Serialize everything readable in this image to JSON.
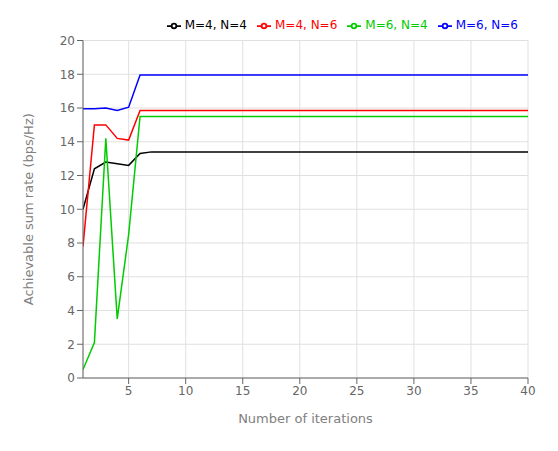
{
  "chart_data": {
    "type": "line",
    "xlabel": "Number of iterations",
    "ylabel": "Achievable sum rate (bps/Hz)",
    "x": [
      1,
      2,
      3,
      4,
      5,
      6,
      7,
      8,
      9,
      10,
      15,
      20,
      25,
      30,
      35,
      40
    ],
    "series": [
      {
        "name": "M=4, N=4",
        "color": "#000000",
        "values": [
          10.0,
          12.4,
          12.8,
          12.7,
          12.6,
          13.3,
          13.4,
          13.4,
          13.4,
          13.4,
          13.4,
          13.4,
          13.4,
          13.4,
          13.4,
          13.4
        ]
      },
      {
        "name": "M=4, N=6",
        "color": "#ff0000",
        "values": [
          7.8,
          15.0,
          15.0,
          14.2,
          14.1,
          15.85,
          15.85,
          15.85,
          15.85,
          15.85,
          15.85,
          15.85,
          15.85,
          15.85,
          15.85,
          15.85
        ]
      },
      {
        "name": "M=6, N=4",
        "color": "#00cc00",
        "values": [
          0.5,
          2.1,
          14.2,
          3.5,
          8.5,
          15.5,
          15.5,
          15.5,
          15.5,
          15.5,
          15.5,
          15.5,
          15.5,
          15.5,
          15.5,
          15.5
        ]
      },
      {
        "name": "M=6, N=6",
        "color": "#0000ff",
        "values": [
          15.95,
          15.95,
          16.0,
          15.85,
          16.05,
          17.95,
          17.95,
          17.95,
          17.95,
          17.95,
          17.95,
          17.95,
          17.95,
          17.95,
          17.95,
          17.95
        ]
      }
    ],
    "xlim": [
      1,
      40
    ],
    "ylim": [
      0,
      20
    ],
    "xticks": [
      5,
      10,
      15,
      20,
      25,
      30,
      35,
      40
    ],
    "yticks": [
      0,
      2,
      4,
      6,
      8,
      10,
      12,
      14,
      16,
      18,
      20
    ],
    "grid": true,
    "legend": "upper right"
  }
}
